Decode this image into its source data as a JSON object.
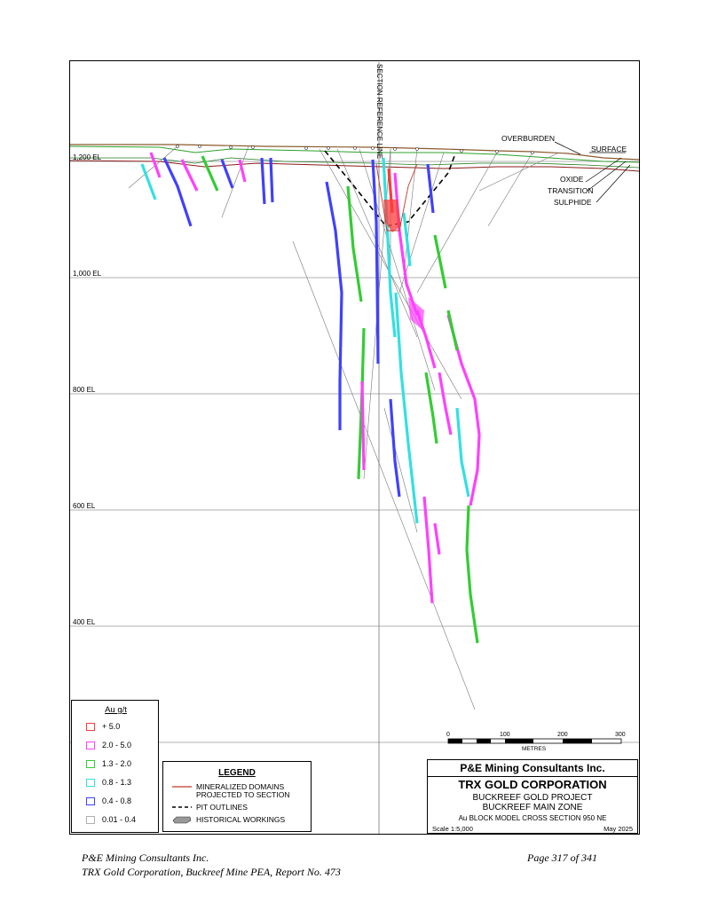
{
  "section": {
    "reference_line_label": "SECTION REFERENCE LINE",
    "elevation_labels": [
      "1,200 EL",
      "1,000 EL",
      "800 EL",
      "600 EL",
      "400 EL"
    ],
    "annotations": {
      "overburden": "OVERBURDEN",
      "surface": "SURFACE",
      "oxide": "OXIDE",
      "transition": "TRANSITION",
      "sulphide": "SULPHIDE"
    },
    "colors": {
      "surface": "#8b5a2b",
      "overburden": "#2ca02c",
      "domains": "#c0392b",
      "grid": "#999999"
    }
  },
  "grade_legend": {
    "title": "Au g/t",
    "items": [
      {
        "label": "+ 5.0",
        "color": "#ff3b3b"
      },
      {
        "label": "2.0 - 5.0",
        "color": "#ff40ff"
      },
      {
        "label": "1.3 - 2.0",
        "color": "#33cc33"
      },
      {
        "label": "0.8 - 1.3",
        "color": "#33e0e0"
      },
      {
        "label": "0.4 - 0.8",
        "color": "#4040ff"
      },
      {
        "label": "0.01 - 0.4",
        "color": "#b0b0b0"
      }
    ]
  },
  "legend": {
    "title": "LEGEND",
    "domains_line1": "MINERALIZED DOMAINS",
    "domains_line2": "PROJECTED TO SECTION",
    "pit": "PIT OUTLINES",
    "workings": "HISTORICAL WORKINGS"
  },
  "scale_bar": {
    "ticks": [
      "0",
      "100",
      "200",
      "300"
    ],
    "unit": "METRES"
  },
  "title_block": {
    "consultant": "P&E Mining Consultants Inc.",
    "corporation": "TRX GOLD CORPORATION",
    "project": "BUCKREEF GOLD PROJECT",
    "zone": "BUCKREEF MAIN ZONE",
    "section_title": "Au BLOCK MODEL CROSS SECTION 950 NE",
    "scale": "Scale 1:5,000",
    "date": "May 2025"
  },
  "footer": {
    "line1": "P&E Mining Consultants Inc.",
    "line2": "TRX Gold Corporation, Buckreef Mine PEA, Report No. 473",
    "page": "Page 317 of 341"
  }
}
